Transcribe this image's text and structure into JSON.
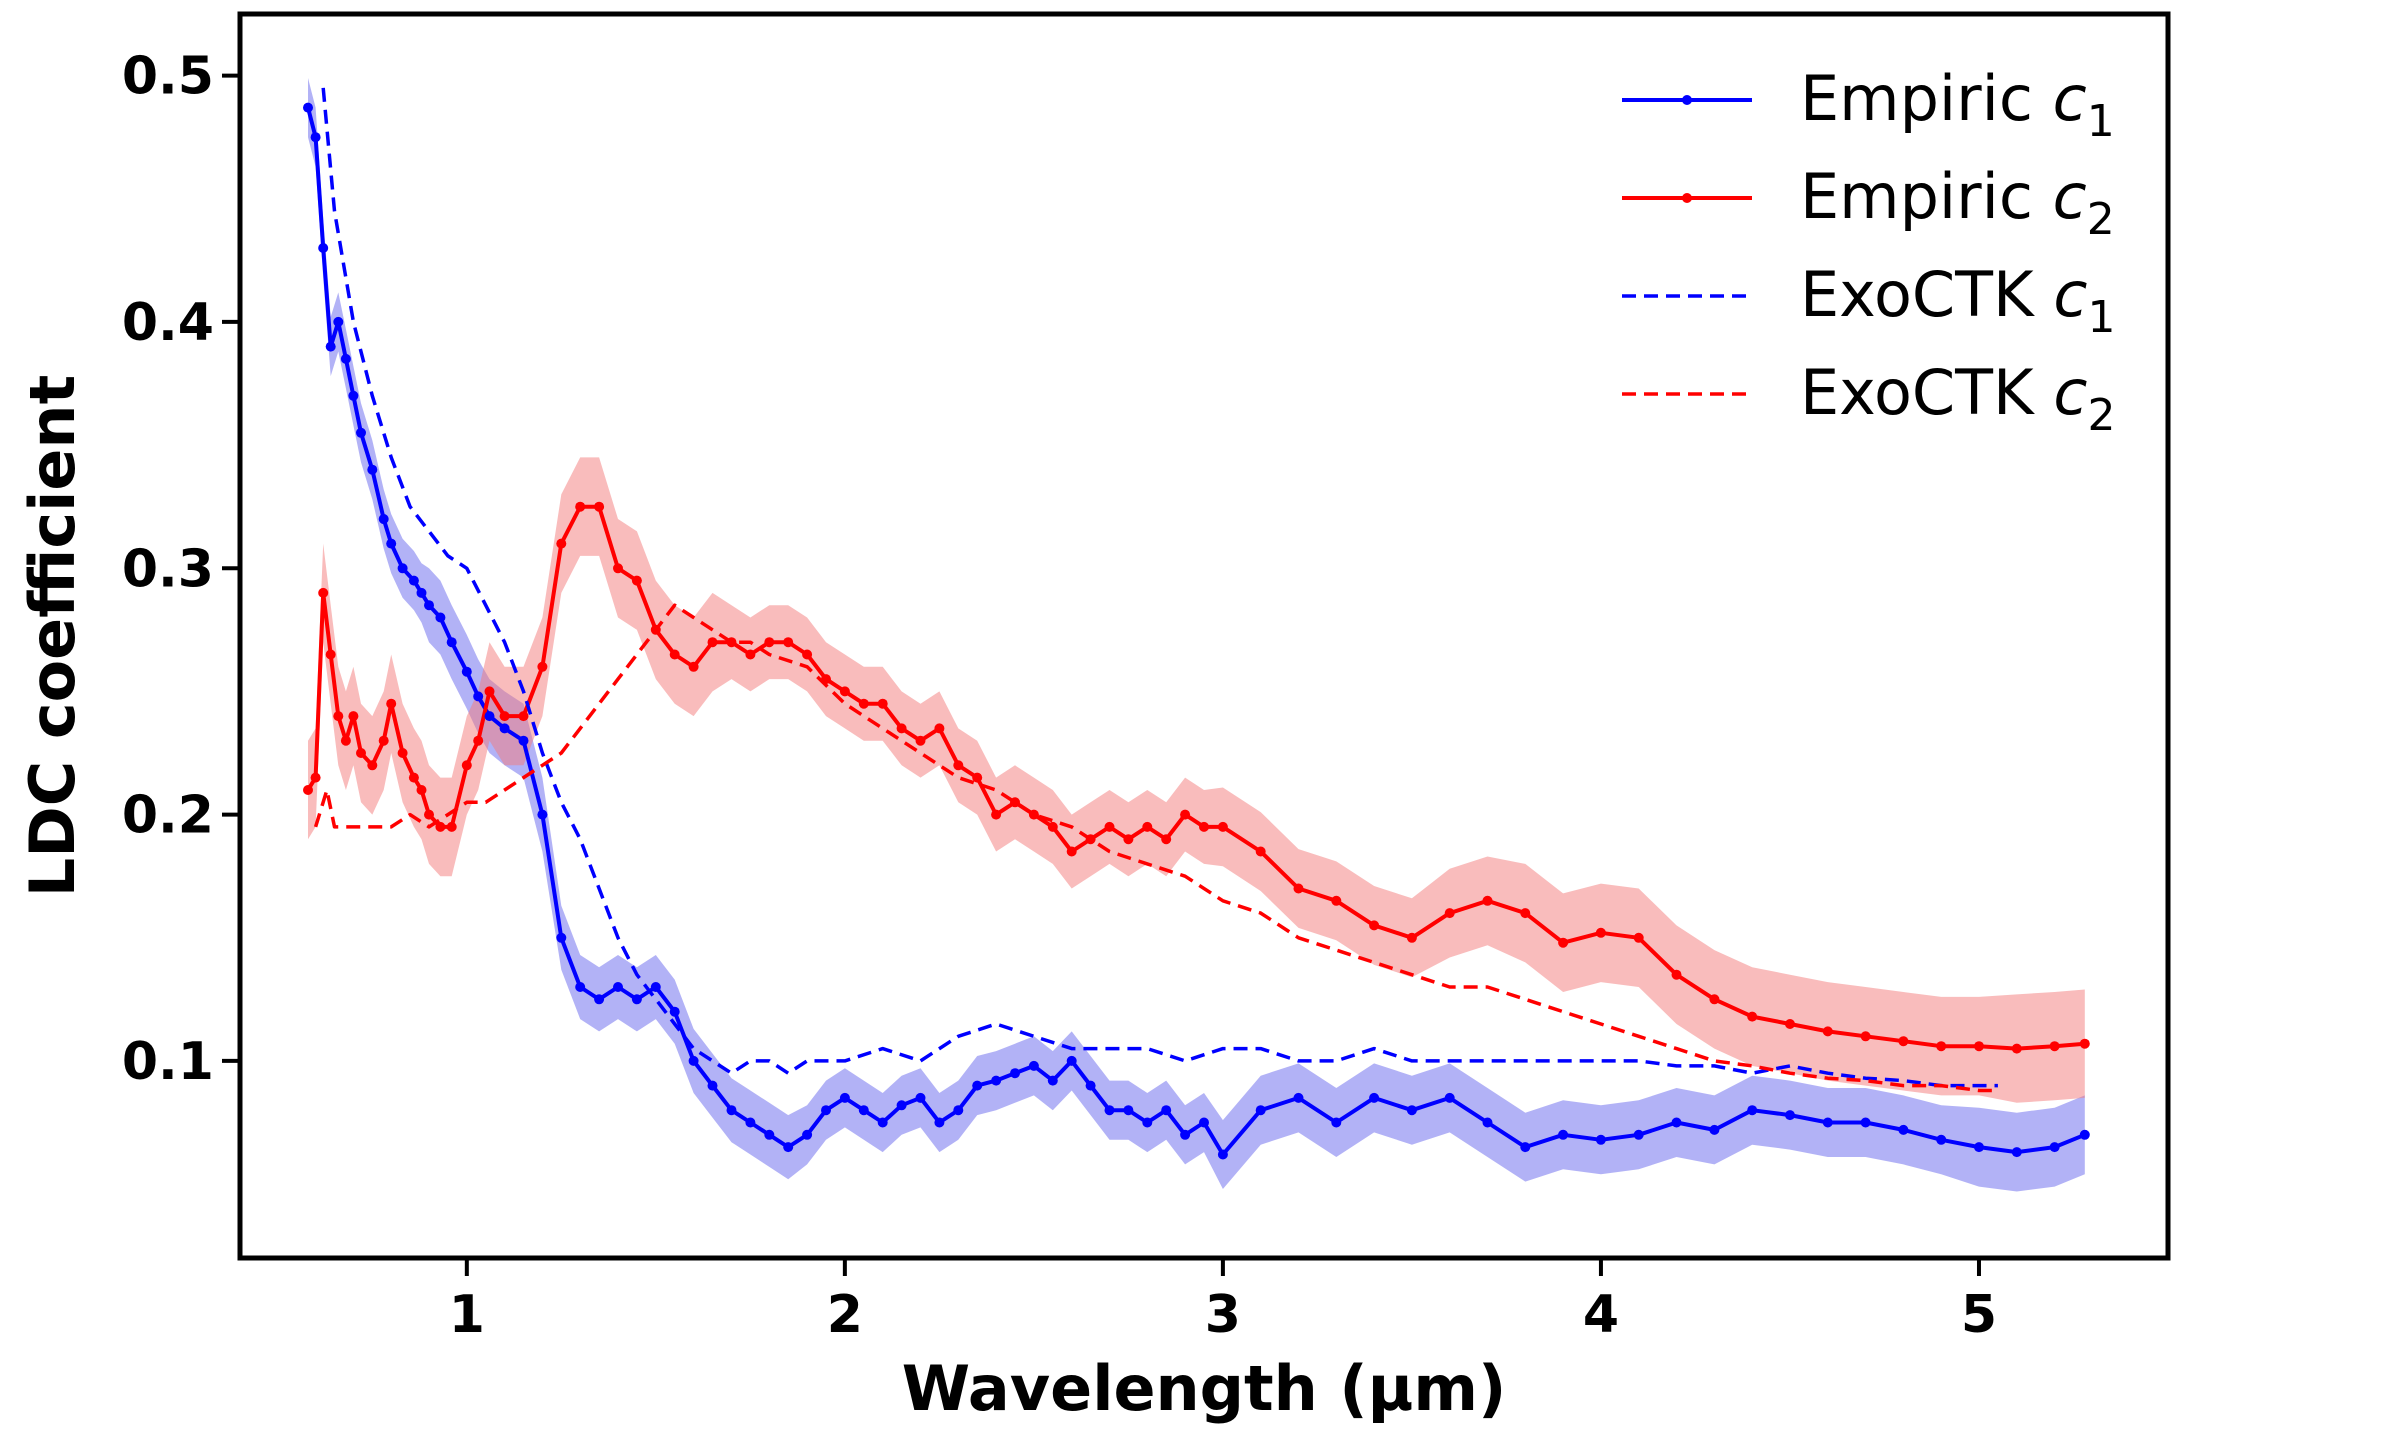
{
  "chart_data": {
    "type": "line",
    "title": "",
    "xlabel": "Wavelength (µm)",
    "ylabel": "LDC coefficient",
    "xlim": [
      0.4,
      5.5
    ],
    "ylim": [
      0.02,
      0.525
    ],
    "xticks": [
      1,
      2,
      3,
      4,
      5
    ],
    "xtick_labels": [
      "1",
      "2",
      "3",
      "4",
      "5"
    ],
    "yticks": [
      0.1,
      0.2,
      0.3,
      0.4,
      0.5
    ],
    "ytick_labels": [
      "0.1",
      "0.2",
      "0.3",
      "0.4",
      "0.5"
    ],
    "grid": false,
    "legend_position": "top-right",
    "series": [
      {
        "name": "Empiric c1",
        "label_main": "Empiric ",
        "label_sym": "c",
        "label_sub": "1",
        "style": "solid-marker",
        "color": "#0000ff",
        "band_color": "#6666ee",
        "x": [
          0.58,
          0.6,
          0.62,
          0.64,
          0.66,
          0.68,
          0.7,
          0.72,
          0.75,
          0.78,
          0.8,
          0.83,
          0.86,
          0.88,
          0.9,
          0.93,
          0.96,
          1.0,
          1.03,
          1.06,
          1.1,
          1.15,
          1.2,
          1.25,
          1.3,
          1.35,
          1.4,
          1.45,
          1.5,
          1.55,
          1.6,
          1.65,
          1.7,
          1.75,
          1.8,
          1.85,
          1.9,
          1.95,
          2.0,
          2.05,
          2.1,
          2.15,
          2.2,
          2.25,
          2.3,
          2.35,
          2.4,
          2.45,
          2.5,
          2.55,
          2.6,
          2.65,
          2.7,
          2.75,
          2.8,
          2.85,
          2.9,
          2.95,
          3.0,
          3.1,
          3.2,
          3.3,
          3.4,
          3.5,
          3.6,
          3.7,
          3.8,
          3.9,
          4.0,
          4.1,
          4.2,
          4.3,
          4.4,
          4.5,
          4.6,
          4.7,
          4.8,
          4.9,
          5.0,
          5.1,
          5.2,
          5.28
        ],
        "y": [
          0.487,
          0.475,
          0.43,
          0.39,
          0.4,
          0.385,
          0.37,
          0.355,
          0.34,
          0.32,
          0.31,
          0.3,
          0.295,
          0.29,
          0.285,
          0.28,
          0.27,
          0.258,
          0.248,
          0.24,
          0.235,
          0.23,
          0.2,
          0.15,
          0.13,
          0.125,
          0.13,
          0.125,
          0.13,
          0.12,
          0.1,
          0.09,
          0.08,
          0.075,
          0.07,
          0.065,
          0.07,
          0.08,
          0.085,
          0.08,
          0.075,
          0.082,
          0.085,
          0.075,
          0.08,
          0.09,
          0.092,
          0.095,
          0.098,
          0.092,
          0.1,
          0.09,
          0.08,
          0.08,
          0.075,
          0.08,
          0.07,
          0.075,
          0.062,
          0.08,
          0.085,
          0.075,
          0.085,
          0.08,
          0.085,
          0.075,
          0.065,
          0.07,
          0.068,
          0.07,
          0.075,
          0.072,
          0.08,
          0.078,
          0.075,
          0.075,
          0.072,
          0.068,
          0.065,
          0.063,
          0.065,
          0.07
        ],
        "band_half_width": [
          0.012,
          0.012,
          0.012,
          0.012,
          0.012,
          0.012,
          0.012,
          0.012,
          0.012,
          0.012,
          0.012,
          0.012,
          0.012,
          0.012,
          0.015,
          0.015,
          0.015,
          0.015,
          0.015,
          0.015,
          0.015,
          0.015,
          0.015,
          0.013,
          0.013,
          0.013,
          0.013,
          0.013,
          0.013,
          0.013,
          0.013,
          0.013,
          0.013,
          0.013,
          0.013,
          0.013,
          0.012,
          0.012,
          0.012,
          0.012,
          0.012,
          0.012,
          0.012,
          0.012,
          0.012,
          0.012,
          0.012,
          0.012,
          0.012,
          0.012,
          0.012,
          0.012,
          0.012,
          0.012,
          0.012,
          0.012,
          0.012,
          0.012,
          0.014,
          0.014,
          0.014,
          0.014,
          0.014,
          0.014,
          0.014,
          0.014,
          0.014,
          0.014,
          0.014,
          0.014,
          0.014,
          0.014,
          0.014,
          0.014,
          0.014,
          0.014,
          0.014,
          0.014,
          0.016,
          0.016,
          0.016,
          0.016
        ]
      },
      {
        "name": "Empiric c2",
        "label_main": "Empiric ",
        "label_sym": "c",
        "label_sub": "2",
        "style": "solid-marker",
        "color": "#ff0000",
        "band_color": "#f47a7a",
        "x": [
          0.58,
          0.6,
          0.62,
          0.64,
          0.66,
          0.68,
          0.7,
          0.72,
          0.75,
          0.78,
          0.8,
          0.83,
          0.86,
          0.88,
          0.9,
          0.93,
          0.96,
          1.0,
          1.03,
          1.06,
          1.1,
          1.15,
          1.2,
          1.25,
          1.3,
          1.35,
          1.4,
          1.45,
          1.5,
          1.55,
          1.6,
          1.65,
          1.7,
          1.75,
          1.8,
          1.85,
          1.9,
          1.95,
          2.0,
          2.05,
          2.1,
          2.15,
          2.2,
          2.25,
          2.3,
          2.35,
          2.4,
          2.45,
          2.5,
          2.55,
          2.6,
          2.65,
          2.7,
          2.75,
          2.8,
          2.85,
          2.9,
          2.95,
          3.0,
          3.1,
          3.2,
          3.3,
          3.4,
          3.5,
          3.6,
          3.7,
          3.8,
          3.9,
          4.0,
          4.1,
          4.2,
          4.3,
          4.4,
          4.5,
          4.6,
          4.7,
          4.8,
          4.9,
          5.0,
          5.1,
          5.2,
          5.28
        ],
        "y": [
          0.21,
          0.215,
          0.29,
          0.265,
          0.24,
          0.23,
          0.24,
          0.225,
          0.22,
          0.23,
          0.245,
          0.225,
          0.215,
          0.21,
          0.2,
          0.195,
          0.195,
          0.22,
          0.23,
          0.25,
          0.24,
          0.24,
          0.26,
          0.31,
          0.325,
          0.325,
          0.3,
          0.295,
          0.275,
          0.265,
          0.26,
          0.27,
          0.27,
          0.265,
          0.27,
          0.27,
          0.265,
          0.255,
          0.25,
          0.245,
          0.245,
          0.235,
          0.23,
          0.235,
          0.22,
          0.215,
          0.2,
          0.205,
          0.2,
          0.195,
          0.185,
          0.19,
          0.195,
          0.19,
          0.195,
          0.19,
          0.2,
          0.195,
          0.195,
          0.185,
          0.17,
          0.165,
          0.155,
          0.15,
          0.16,
          0.165,
          0.16,
          0.148,
          0.152,
          0.15,
          0.135,
          0.125,
          0.118,
          0.115,
          0.112,
          0.11,
          0.108,
          0.106,
          0.106,
          0.105,
          0.106,
          0.107
        ],
        "band_half_width": [
          0.02,
          0.02,
          0.02,
          0.02,
          0.02,
          0.02,
          0.02,
          0.02,
          0.02,
          0.02,
          0.02,
          0.02,
          0.02,
          0.02,
          0.02,
          0.02,
          0.02,
          0.02,
          0.02,
          0.02,
          0.02,
          0.02,
          0.02,
          0.02,
          0.02,
          0.02,
          0.02,
          0.02,
          0.02,
          0.02,
          0.02,
          0.02,
          0.015,
          0.015,
          0.015,
          0.015,
          0.015,
          0.015,
          0.015,
          0.015,
          0.015,
          0.015,
          0.015,
          0.015,
          0.015,
          0.015,
          0.015,
          0.015,
          0.015,
          0.015,
          0.015,
          0.015,
          0.015,
          0.015,
          0.015,
          0.015,
          0.015,
          0.015,
          0.016,
          0.016,
          0.016,
          0.016,
          0.016,
          0.016,
          0.018,
          0.018,
          0.02,
          0.02,
          0.02,
          0.02,
          0.02,
          0.02,
          0.02,
          0.02,
          0.02,
          0.02,
          0.02,
          0.02,
          0.02,
          0.022,
          0.022,
          0.022
        ]
      },
      {
        "name": "ExoCTK c1",
        "label_main": "ExoCTK ",
        "label_sym": "c",
        "label_sub": "1",
        "style": "dashed",
        "color": "#0000ff",
        "x": [
          0.62,
          0.65,
          0.7,
          0.75,
          0.8,
          0.85,
          0.9,
          0.95,
          1.0,
          1.05,
          1.1,
          1.15,
          1.2,
          1.25,
          1.3,
          1.35,
          1.4,
          1.45,
          1.5,
          1.55,
          1.6,
          1.65,
          1.7,
          1.75,
          1.8,
          1.85,
          1.9,
          1.95,
          2.0,
          2.1,
          2.2,
          2.3,
          2.4,
          2.5,
          2.6,
          2.7,
          2.8,
          2.9,
          3.0,
          3.1,
          3.2,
          3.3,
          3.4,
          3.5,
          3.6,
          3.7,
          3.8,
          3.9,
          4.0,
          4.1,
          4.2,
          4.3,
          4.4,
          4.5,
          4.6,
          4.7,
          4.8,
          4.9,
          5.0,
          5.05
        ],
        "y": [
          0.495,
          0.445,
          0.4,
          0.37,
          0.345,
          0.325,
          0.315,
          0.305,
          0.3,
          0.285,
          0.27,
          0.25,
          0.225,
          0.205,
          0.19,
          0.17,
          0.15,
          0.135,
          0.125,
          0.115,
          0.105,
          0.1,
          0.095,
          0.1,
          0.1,
          0.095,
          0.1,
          0.1,
          0.1,
          0.105,
          0.1,
          0.11,
          0.115,
          0.11,
          0.105,
          0.105,
          0.105,
          0.1,
          0.105,
          0.105,
          0.1,
          0.1,
          0.105,
          0.1,
          0.1,
          0.1,
          0.1,
          0.1,
          0.1,
          0.1,
          0.098,
          0.098,
          0.095,
          0.098,
          0.095,
          0.093,
          0.092,
          0.09,
          0.09,
          0.09
        ]
      },
      {
        "name": "ExoCTK c2",
        "label_main": "ExoCTK ",
        "label_sym": "c",
        "label_sub": "2",
        "style": "dashed",
        "color": "#ff0000",
        "x": [
          0.6,
          0.63,
          0.65,
          0.7,
          0.75,
          0.8,
          0.85,
          0.9,
          0.95,
          1.0,
          1.05,
          1.1,
          1.15,
          1.2,
          1.25,
          1.3,
          1.35,
          1.4,
          1.45,
          1.5,
          1.55,
          1.6,
          1.65,
          1.7,
          1.75,
          1.8,
          1.9,
          2.0,
          2.1,
          2.2,
          2.3,
          2.4,
          2.5,
          2.6,
          2.7,
          2.8,
          2.9,
          3.0,
          3.1,
          3.2,
          3.3,
          3.4,
          3.5,
          3.6,
          3.7,
          3.8,
          3.9,
          4.0,
          4.1,
          4.2,
          4.3,
          4.4,
          4.5,
          4.6,
          4.7,
          4.8,
          4.9,
          5.0,
          5.05
        ],
        "y": [
          0.195,
          0.21,
          0.195,
          0.195,
          0.195,
          0.195,
          0.2,
          0.195,
          0.2,
          0.205,
          0.205,
          0.21,
          0.215,
          0.22,
          0.225,
          0.235,
          0.245,
          0.255,
          0.265,
          0.275,
          0.285,
          0.28,
          0.275,
          0.27,
          0.27,
          0.265,
          0.26,
          0.245,
          0.235,
          0.225,
          0.215,
          0.21,
          0.2,
          0.195,
          0.185,
          0.18,
          0.175,
          0.165,
          0.16,
          0.15,
          0.145,
          0.14,
          0.135,
          0.13,
          0.13,
          0.125,
          0.12,
          0.115,
          0.11,
          0.105,
          0.1,
          0.098,
          0.095,
          0.093,
          0.092,
          0.09,
          0.09,
          0.088,
          0.088
        ]
      }
    ]
  }
}
